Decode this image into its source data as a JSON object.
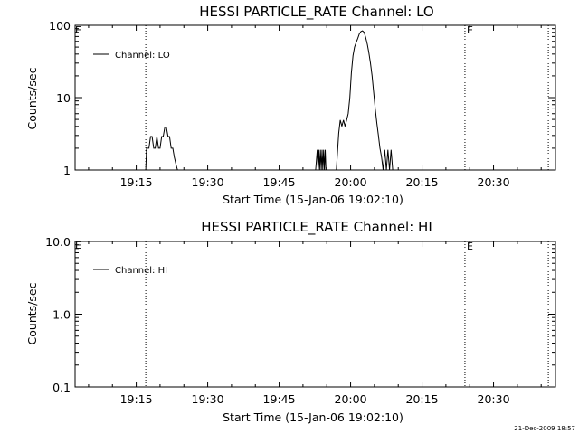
{
  "chart_data": [
    {
      "type": "line",
      "title": "HESSI PARTICLE_RATE Channel: LO",
      "xlabel": "Start Time (15-Jan-06 19:02:10)",
      "ylabel": "Counts/sec",
      "yscale": "log",
      "xlim": [
        "19:02:10",
        "20:43:00"
      ],
      "ylim": [
        1,
        100
      ],
      "xticks": [
        "19:15",
        "19:30",
        "19:45",
        "20:00",
        "20:15",
        "20:30"
      ],
      "yticks": [
        "1",
        "10",
        "100"
      ],
      "legend": {
        "label": "Channel: LO",
        "placement": "top-left"
      },
      "markers": [
        {
          "time": "19:17:00",
          "label": ""
        },
        {
          "time": "20:24:00",
          "label": "E"
        },
        {
          "time": "20:41:30",
          "label": ""
        }
      ],
      "corner_label": "E",
      "series": [
        {
          "name": "Channel: LO",
          "segments": [
            {
              "x": [
                "19:17:00",
                "19:17:10",
                "19:17:40",
                "19:18:00",
                "19:18:20",
                "19:18:40",
                "19:19:00",
                "19:19:20",
                "19:19:40",
                "19:20:00",
                "19:20:20",
                "19:20:40",
                "19:21:00",
                "19:21:20",
                "19:21:40",
                "19:22:00",
                "19:22:20",
                "19:22:40",
                "19:23:00",
                "19:23:20",
                "19:23:40",
                "19:24:00"
              ],
              "y": [
                1.0,
                2.0,
                2.0,
                2.9,
                2.9,
                2.0,
                2.0,
                2.9,
                2.0,
                2.0,
                2.9,
                2.9,
                3.9,
                3.9,
                2.9,
                2.9,
                2.0,
                2.0,
                1.5,
                1.2,
                1.0,
                1.0
              ]
            },
            {
              "x": [
                "19:52:40",
                "19:53:00",
                "19:53:10",
                "19:53:20",
                "19:53:30",
                "19:53:40",
                "19:53:50",
                "19:54:00",
                "19:54:10",
                "19:54:20",
                "19:54:30",
                "19:54:40",
                "19:54:50",
                "19:55:00"
              ],
              "y": [
                1.0,
                1.9,
                1.0,
                1.9,
                1.0,
                1.9,
                1.0,
                1.9,
                1.0,
                1.9,
                1.0,
                1.9,
                1.0,
                1.0
              ]
            },
            {
              "x": [
                "19:57:00",
                "19:57:30",
                "19:57:50",
                "19:58:10",
                "19:58:30",
                "19:58:50",
                "19:59:10",
                "19:59:30",
                "19:59:50",
                "20:00:10",
                "20:00:30",
                "20:00:50",
                "20:01:10",
                "20:01:30",
                "20:01:50",
                "20:02:10",
                "20:02:30",
                "20:02:50",
                "20:03:10",
                "20:03:30",
                "20:03:50",
                "20:04:10",
                "20:04:30",
                "20:04:50",
                "20:05:10",
                "20:05:30",
                "20:05:50",
                "20:06:10",
                "20:06:30",
                "20:06:50",
                "20:07:10",
                "20:07:30",
                "20:07:50",
                "20:08:10",
                "20:08:30",
                "20:08:50"
              ],
              "y": [
                1.0,
                3.2,
                4.9,
                4.0,
                4.9,
                4.0,
                4.9,
                6.0,
                10.0,
                22.0,
                38.0,
                50.0,
                58.0,
                66.0,
                76.0,
                82.0,
                84.0,
                80.0,
                68.0,
                55.0,
                42.0,
                30.0,
                20.0,
                12.0,
                7.0,
                4.5,
                3.0,
                2.0,
                1.5,
                1.0,
                1.9,
                1.0,
                1.9,
                1.0,
                1.9,
                1.0
              ]
            }
          ]
        }
      ]
    },
    {
      "type": "line",
      "title": "HESSI PARTICLE_RATE Channel: HI",
      "xlabel": "Start Time (15-Jan-06 19:02:10)",
      "ylabel": "Counts/sec",
      "yscale": "log",
      "xlim": [
        "19:02:10",
        "20:43:00"
      ],
      "ylim": [
        0.1,
        10.0
      ],
      "xticks": [
        "19:15",
        "19:30",
        "19:45",
        "20:00",
        "20:15",
        "20:30"
      ],
      "yticks": [
        "0.1",
        "1.0",
        "10.0"
      ],
      "legend": {
        "label": "Channel: HI",
        "placement": "top-left"
      },
      "markers": [
        {
          "time": "19:17:00",
          "label": ""
        },
        {
          "time": "20:24:00",
          "label": "E"
        },
        {
          "time": "20:41:30",
          "label": ""
        }
      ],
      "corner_label": "E",
      "series": [
        {
          "name": "Channel: HI",
          "segments": []
        }
      ]
    }
  ],
  "footer": {
    "timestamp": "21-Dec-2009 18:57"
  }
}
